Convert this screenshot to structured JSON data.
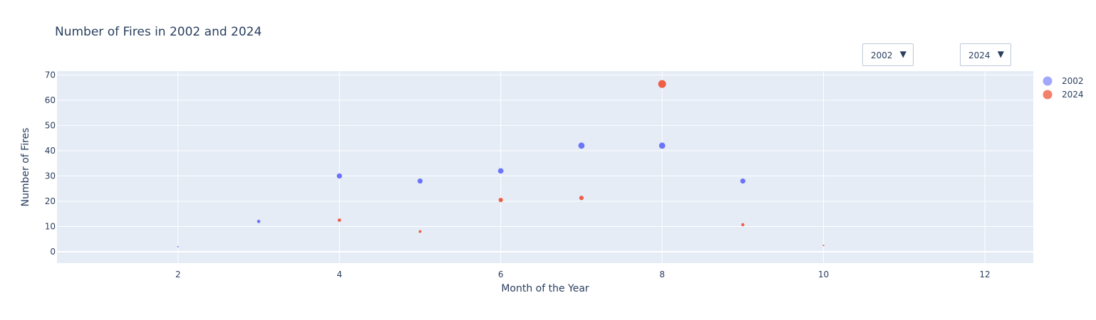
{
  "chart_data": {
    "type": "scatter",
    "title": "Number of Fires in 2002 and 2024",
    "xlabel": "Month of the Year",
    "ylabel": "Number of Fires",
    "xlim": [
      0.5,
      12.6
    ],
    "ylim": [
      -4.5,
      71.5
    ],
    "xticks": [
      2,
      4,
      6,
      8,
      10,
      12
    ],
    "yticks": [
      0,
      10,
      20,
      30,
      40,
      50,
      60,
      70
    ],
    "grid": true,
    "legend_position": "right",
    "series": [
      {
        "name": "2002",
        "color": "#636efa",
        "x": [
          2,
          3,
          4,
          5,
          6,
          7,
          8,
          9
        ],
        "y": [
          2,
          12,
          30,
          28,
          32,
          42,
          42,
          28
        ]
      },
      {
        "name": "2024",
        "color": "#ef553b",
        "x": [
          4,
          5,
          6,
          7,
          8,
          9,
          10
        ],
        "y": [
          12.5,
          8,
          20.5,
          21.3,
          66.4,
          10.7,
          2.5
        ]
      }
    ]
  },
  "controls": {
    "dropdown_left": {
      "label": "2002",
      "arrow": "▼"
    },
    "dropdown_right": {
      "label": "2024",
      "arrow": "▼"
    }
  }
}
